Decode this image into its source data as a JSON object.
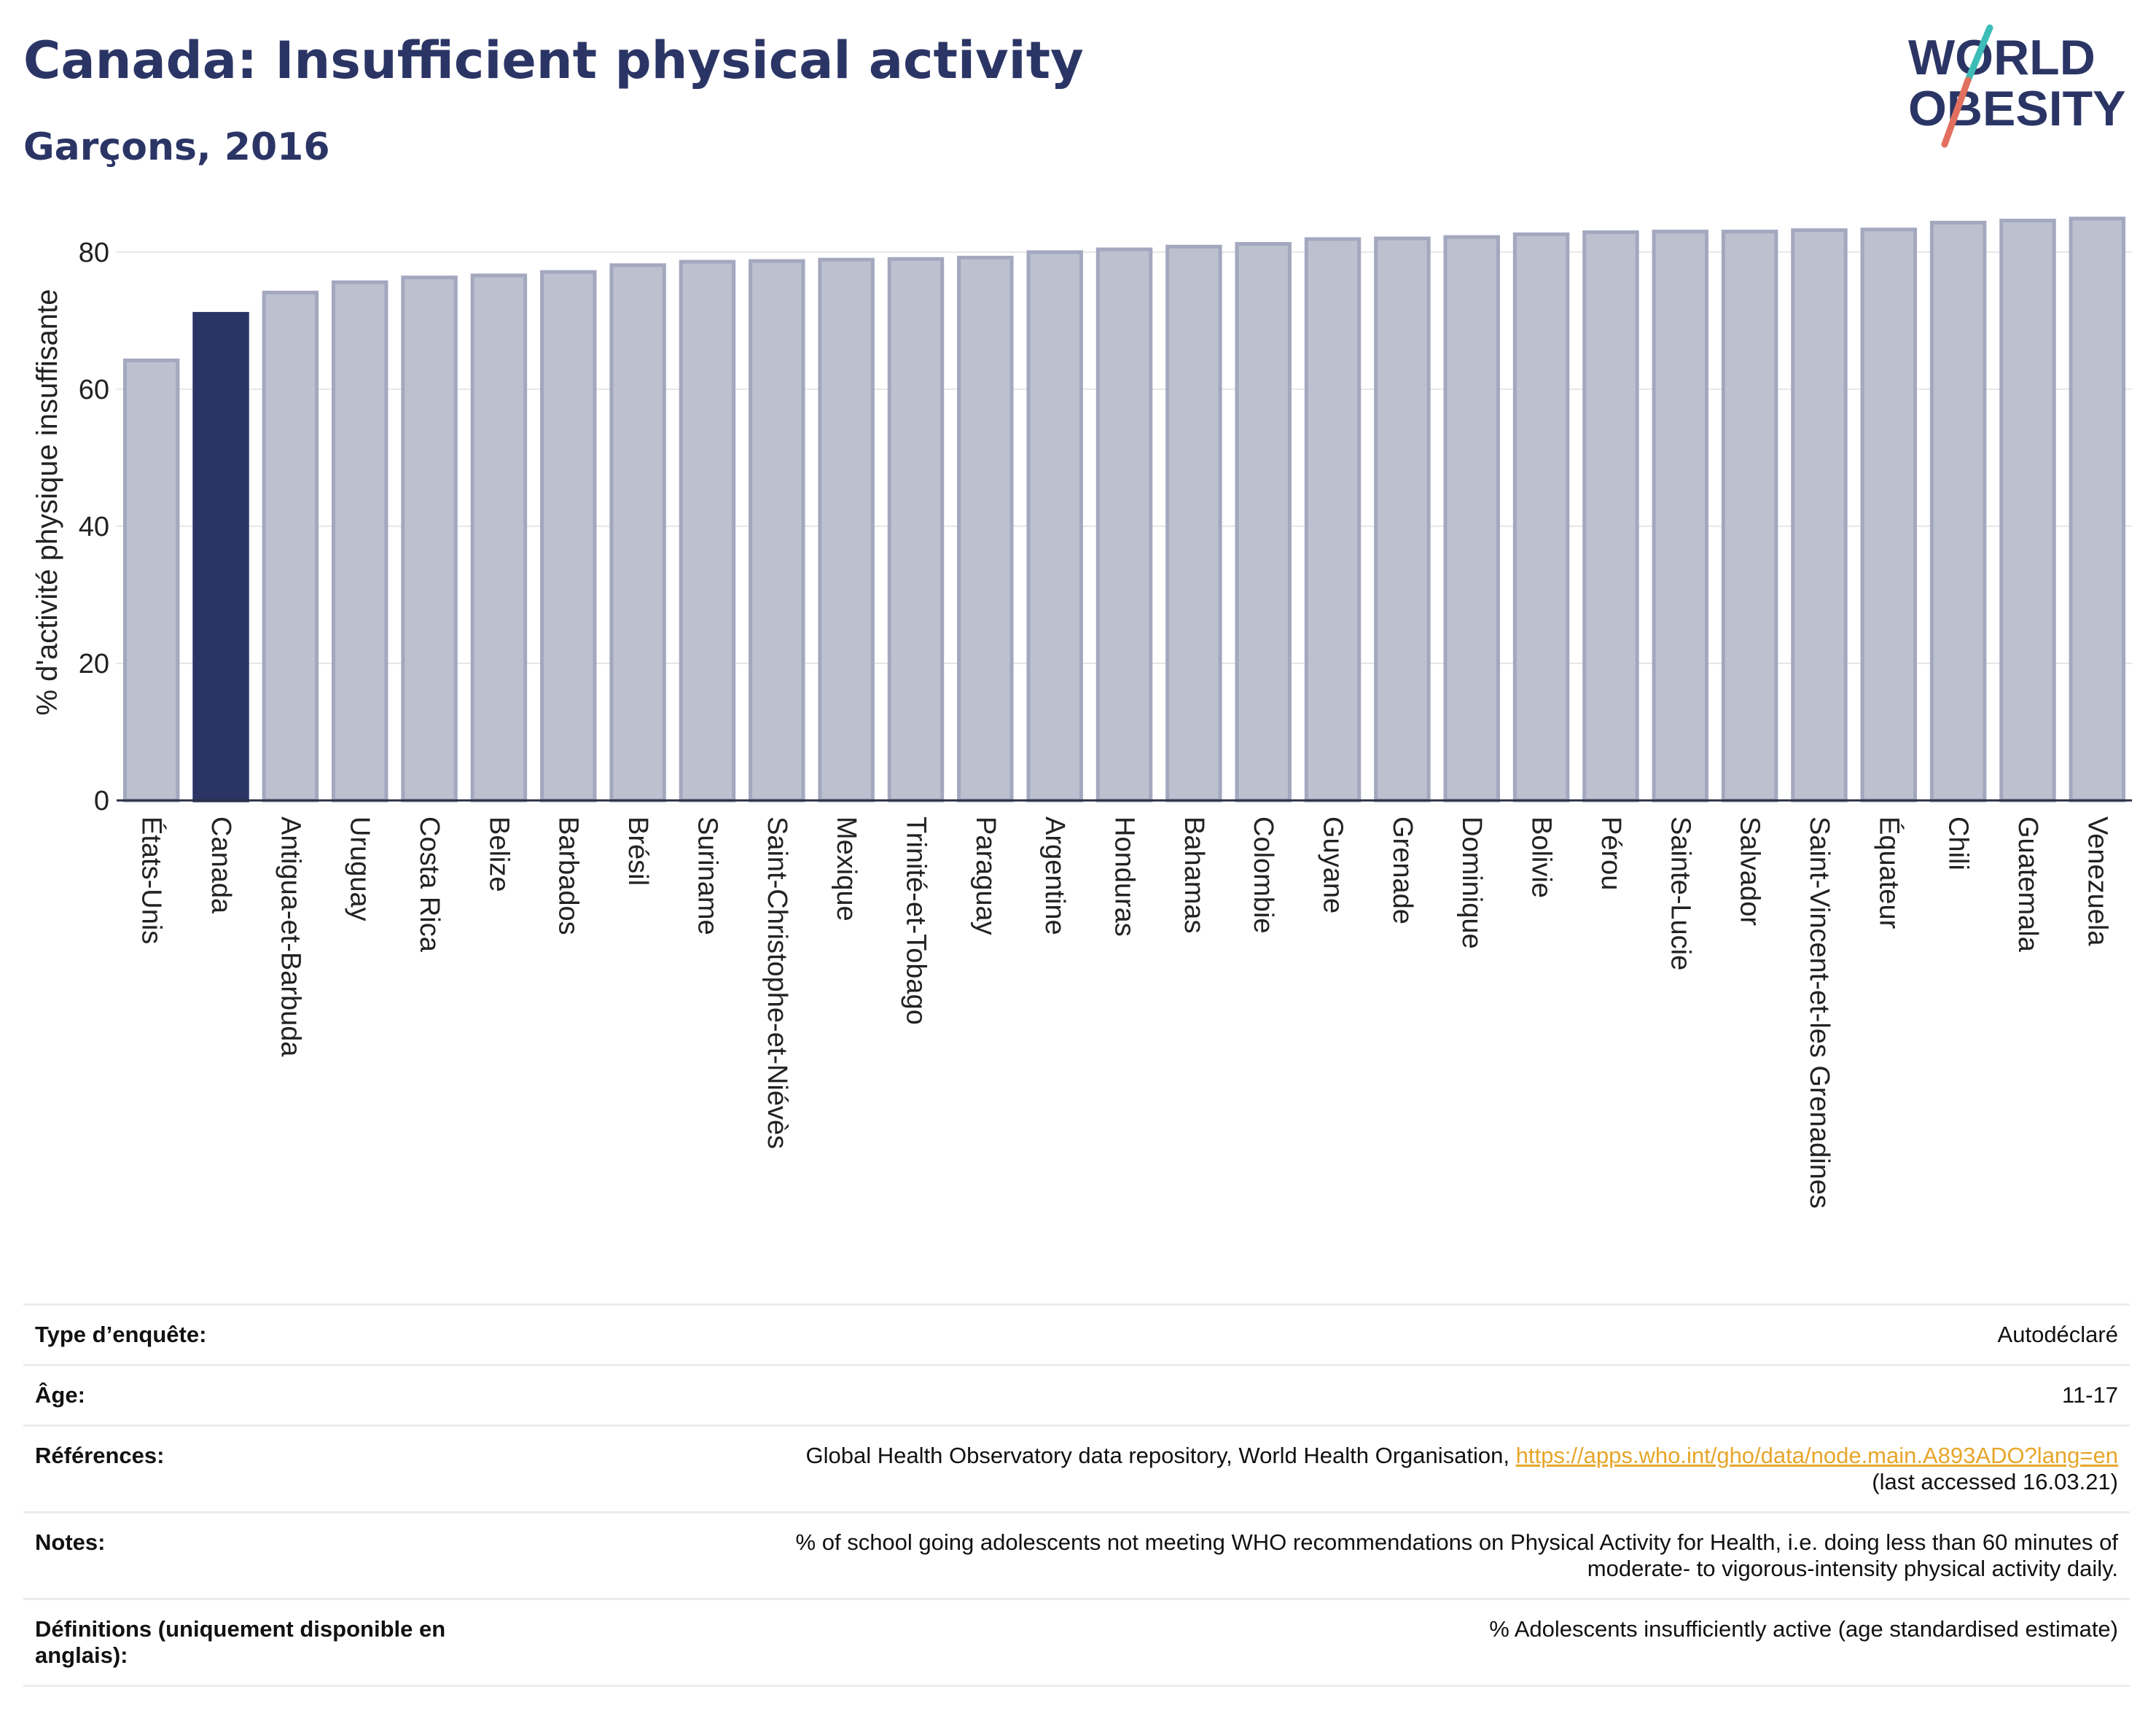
{
  "header": {
    "title": "Canada: Insufficient physical activity",
    "subtitle": "Garçons, 2016"
  },
  "logo": {
    "line1": "WORLD",
    "line2": "OBESITY"
  },
  "colors": {
    "highlight": "#2b3565",
    "bar_fill": "#bcc0cf",
    "bar_edge": "#a3a8bf",
    "title": "#2b3565",
    "link": "#e7a62a",
    "logo_teal": "#3dbdb8",
    "logo_coral": "#e2705f"
  },
  "chart_data": {
    "type": "bar",
    "title": "Canada: Insufficient physical activity",
    "subtitle": "Garçons, 2016",
    "ylabel": "% d'activité physique insuffisante",
    "xlabel": "",
    "ylim": [
      0,
      87
    ],
    "yticks": [
      0,
      20,
      40,
      60,
      80
    ],
    "grid": true,
    "highlight_category": "Canada",
    "categories": [
      "États-Unis",
      "Canada",
      "Antigua-et-Barbuda",
      "Uruguay",
      "Costa Rica",
      "Belize",
      "Barbados",
      "Brésil",
      "Suriname",
      "Saint-Christophe-et-Niévès",
      "Mexique",
      "Trinité-et-Tobago",
      "Paraguay",
      "Argentine",
      "Honduras",
      "Bahamas",
      "Colombie",
      "Guyane",
      "Grenade",
      "Dominique",
      "Bolivie",
      "Pérou",
      "Sainte-Lucie",
      "Salvador",
      "Saint-Vincent-et-les Grenadines",
      "Équateur",
      "Chili",
      "Guatemala",
      "Venezuela"
    ],
    "values": [
      64.2,
      71.0,
      74.1,
      75.6,
      76.3,
      76.6,
      77.1,
      78.1,
      78.6,
      78.7,
      78.9,
      79.0,
      79.2,
      80.0,
      80.4,
      80.8,
      81.2,
      81.9,
      82.0,
      82.2,
      82.6,
      82.9,
      83.0,
      83.0,
      83.2,
      83.3,
      84.3,
      84.6,
      84.9
    ]
  },
  "info": {
    "rows": [
      {
        "label": "Type d’enquête:",
        "value": "Autodéclaré"
      },
      {
        "label": "Âge:",
        "value": "11-17"
      },
      {
        "label": "Références:",
        "value": "Global Health Observatory data repository, World Health Organisation, ",
        "link": "https://apps.who.int/gho/data/node.main.A893ADO?lang=en",
        "value2": "(last accessed 16.03.21)"
      },
      {
        "label": "Notes:",
        "value": "% of school going adolescents not meeting WHO recommendations on Physical Activity for Health, i.e. doing less than 60 minutes of",
        "value2": "moderate- to vigorous-intensity physical activity daily."
      },
      {
        "label": "Définitions (uniquement disponible en anglais):",
        "value": "% Adolescents insufficiently active (age standardised estimate)"
      }
    ]
  }
}
